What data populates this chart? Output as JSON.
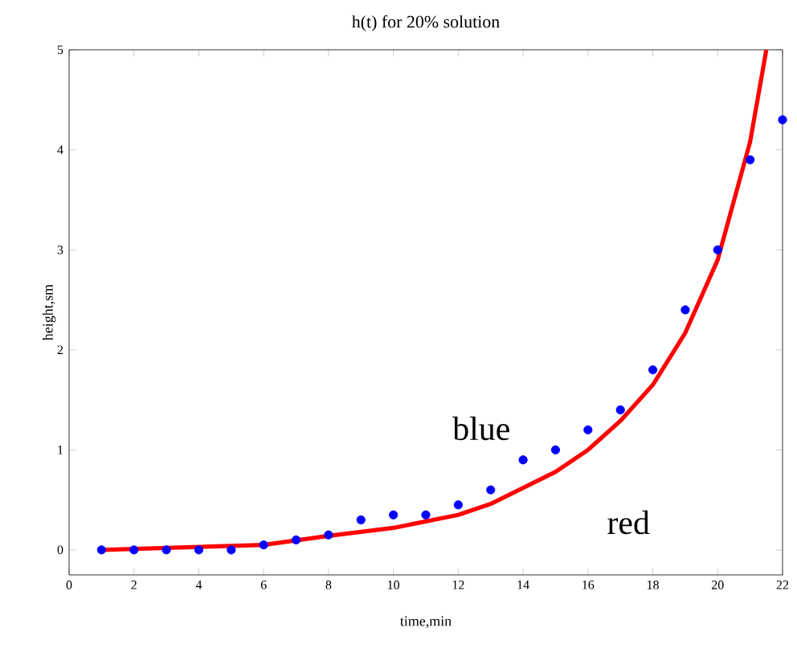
{
  "chart_data": {
    "type": "scatter",
    "title": "h(t) for 20% solution",
    "xlabel": "time,min",
    "ylabel": "height,sm",
    "xlim": [
      0,
      22
    ],
    "ylim": [
      -0.25,
      5
    ],
    "xticks": [
      0,
      2,
      4,
      6,
      8,
      10,
      12,
      14,
      16,
      18,
      20,
      22
    ],
    "yticks": [
      0,
      1,
      2,
      3,
      4,
      5
    ],
    "series": [
      {
        "name": "blue",
        "marker": "circle",
        "color": "#0000ff",
        "x": [
          1,
          2,
          3,
          4,
          5,
          6,
          7,
          8,
          9,
          10,
          11,
          12,
          13,
          14,
          15,
          16,
          17,
          18,
          19,
          20,
          21,
          22
        ],
        "values": [
          0,
          0,
          0,
          0,
          0,
          0.05,
          0.1,
          0.15,
          0.3,
          0.35,
          0.35,
          0.45,
          0.6,
          0.9,
          1.0,
          1.2,
          1.4,
          1.8,
          2.4,
          3.0,
          3.9,
          4.3
        ]
      },
      {
        "name": "red",
        "type": "line",
        "color": "#ff0000",
        "x": [
          1,
          6,
          8,
          10,
          12,
          13,
          14,
          15,
          16,
          17,
          18,
          19,
          20,
          21,
          21.5
        ],
        "values": [
          0,
          0.05,
          0.14,
          0.22,
          0.35,
          0.46,
          0.62,
          0.78,
          1.0,
          1.29,
          1.65,
          2.17,
          2.9,
          4.08,
          5
        ]
      }
    ]
  }
}
